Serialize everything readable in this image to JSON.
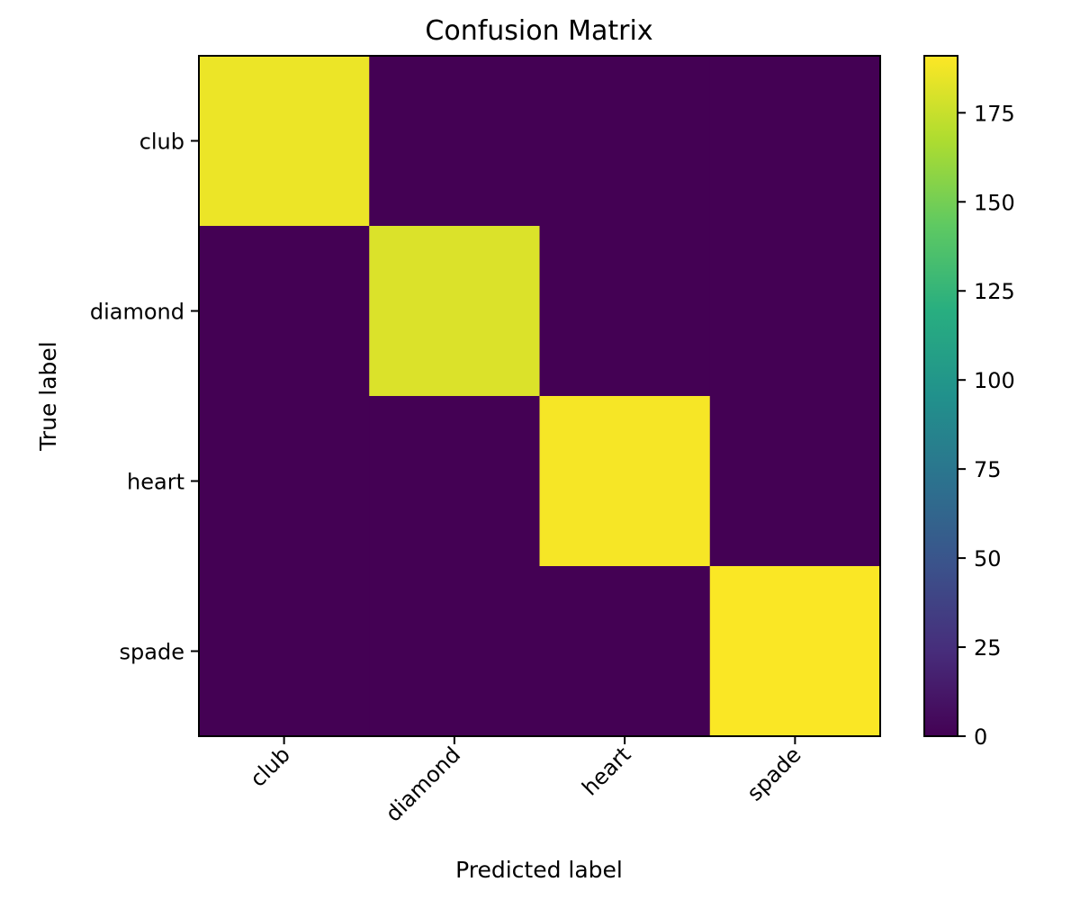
{
  "chart_data": {
    "type": "heatmap",
    "title": "Confusion Matrix",
    "xlabel": "Predicted label",
    "ylabel": "True label",
    "x_categories": [
      "club",
      "diamond",
      "heart",
      "spade"
    ],
    "y_categories": [
      "club",
      "diamond",
      "heart",
      "spade"
    ],
    "values": [
      [
        186,
        0,
        0,
        0
      ],
      [
        0,
        181,
        0,
        0
      ],
      [
        0,
        0,
        189,
        0
      ],
      [
        0,
        0,
        0,
        190
      ]
    ],
    "colormap": "viridis",
    "colorbar": {
      "range": [
        0,
        191
      ],
      "ticks": [
        0,
        25,
        50,
        75,
        100,
        125,
        150,
        175
      ]
    },
    "colors": {
      "low": "#440154",
      "high": "#fde725"
    },
    "grid": false
  }
}
